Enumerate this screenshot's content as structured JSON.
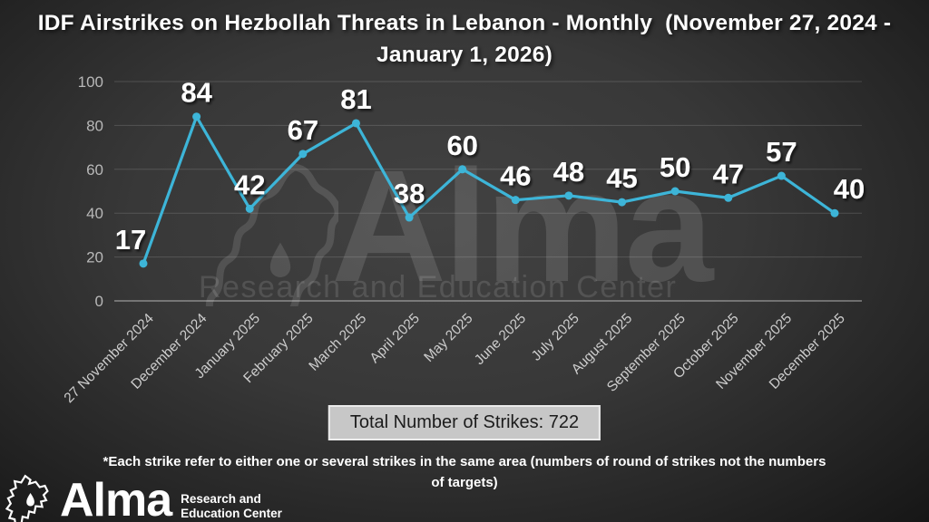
{
  "title": "IDF Airstrikes on Hezbollah Threats in Lebanon - Monthly  (November 27, 2024 - January 1, 2026)",
  "chart_data": {
    "type": "line",
    "title": "IDF Airstrikes on Hezbollah Threats in Lebanon - Monthly (November 27, 2024 - January 1, 2026)",
    "categories": [
      "27 November 2024",
      "December 2024",
      "January 2025",
      "February 2025",
      "March 2025",
      "April 2025",
      "May 2025",
      "June 2025",
      "July 2025",
      "August 2025",
      "September 2025",
      "October 2025",
      "November 2025",
      "December 2025"
    ],
    "values": [
      17,
      84,
      42,
      67,
      81,
      38,
      60,
      46,
      48,
      45,
      50,
      47,
      57,
      40
    ],
    "total_strikes": 722,
    "xlabel": "",
    "ylabel": "",
    "ylim": [
      0,
      100
    ],
    "yticks": [
      0,
      20,
      40,
      60,
      80,
      100
    ],
    "grid": true,
    "legend": false,
    "line_color": "#3db5d8",
    "marker": "circle"
  },
  "summary": {
    "total": "Total Number of Strikes: 722"
  },
  "footnote": "*Each strike refer to either one or several strikes in the same area (numbers of round of strikes not the numbers of targets)",
  "watermark": {
    "brand": "Alma",
    "tagline": "Research and Education Center"
  },
  "logo": {
    "brand": "Alma",
    "tagline_line1": "Research and",
    "tagline_line2": "Education Center"
  },
  "colors": {
    "line": "#3db5d8",
    "data_label": "#ffffff",
    "axis_tick": "#b8b8b8",
    "x_tick": "#cdcdcd",
    "total_box_bg": "#c7c7c7",
    "total_box_text": "#1c1c1c",
    "background_center": "#424242",
    "background_edge": "#0d0d0d"
  }
}
